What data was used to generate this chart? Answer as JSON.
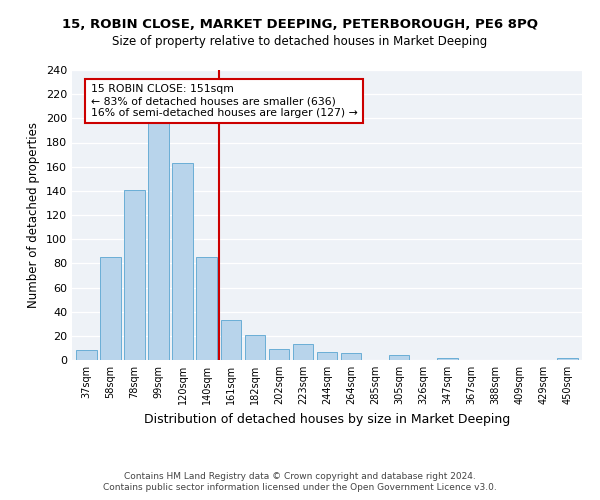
{
  "title": "15, ROBIN CLOSE, MARKET DEEPING, PETERBOROUGH, PE6 8PQ",
  "subtitle": "Size of property relative to detached houses in Market Deeping",
  "xlabel": "Distribution of detached houses by size in Market Deeping",
  "ylabel": "Number of detached properties",
  "bar_labels": [
    "37sqm",
    "58sqm",
    "78sqm",
    "99sqm",
    "120sqm",
    "140sqm",
    "161sqm",
    "182sqm",
    "202sqm",
    "223sqm",
    "244sqm",
    "264sqm",
    "285sqm",
    "305sqm",
    "326sqm",
    "347sqm",
    "367sqm",
    "388sqm",
    "409sqm",
    "429sqm",
    "450sqm"
  ],
  "bar_values": [
    8,
    85,
    141,
    198,
    163,
    85,
    33,
    21,
    9,
    13,
    7,
    6,
    0,
    4,
    0,
    2,
    0,
    0,
    0,
    0,
    2
  ],
  "bar_color": "#b8d4eb",
  "bar_edge_color": "#6aaed6",
  "vline_x": 5.5,
  "vline_color": "#cc0000",
  "annotation_text": "15 ROBIN CLOSE: 151sqm\n← 83% of detached houses are smaller (636)\n16% of semi-detached houses are larger (127) →",
  "annotation_box_color": "#ffffff",
  "annotation_box_edge": "#cc0000",
  "ylim": [
    0,
    240
  ],
  "yticks": [
    0,
    20,
    40,
    60,
    80,
    100,
    120,
    140,
    160,
    180,
    200,
    220,
    240
  ],
  "footer_line1": "Contains HM Land Registry data © Crown copyright and database right 2024.",
  "footer_line2": "Contains public sector information licensed under the Open Government Licence v3.0.",
  "bg_color": "#eef2f7"
}
